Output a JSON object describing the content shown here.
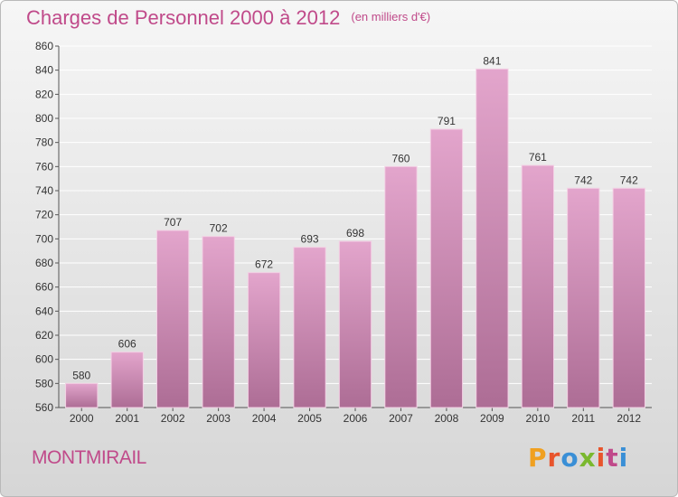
{
  "header": {
    "title": "Charges de Personnel 2000 à 2012",
    "unit": "(en milliers d'€)"
  },
  "footer": {
    "commune": "MONTMIRAIL",
    "logo": "Proxiti"
  },
  "colors": {
    "title": "#c04a8a",
    "bar_top": "#e3a5cc",
    "bar_bottom": "#ad6d95",
    "logo_letters": [
      "#f0a020",
      "#e8542c",
      "#3a8fd6",
      "#7ab82e",
      "#e8542c",
      "#c04a8a",
      "#3a8fd6"
    ]
  },
  "chart_data": {
    "type": "bar",
    "categories": [
      "2000",
      "2001",
      "2002",
      "2003",
      "2004",
      "2005",
      "2006",
      "2007",
      "2008",
      "2009",
      "2010",
      "2011",
      "2012"
    ],
    "values": [
      580,
      606,
      707,
      702,
      672,
      693,
      698,
      760,
      791,
      841,
      761,
      742,
      742
    ],
    "ylim": [
      560,
      860
    ],
    "yticks": [
      560,
      580,
      600,
      620,
      640,
      660,
      680,
      700,
      720,
      740,
      760,
      780,
      800,
      820,
      840,
      860
    ],
    "grid": true,
    "title": "Charges de Personnel 2000 à 2012",
    "xlabel": "",
    "ylabel": ""
  }
}
